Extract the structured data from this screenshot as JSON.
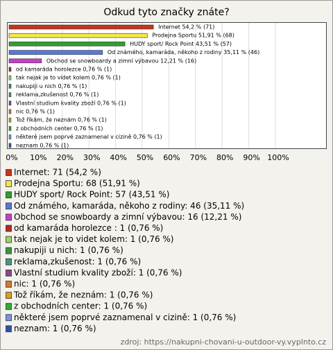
{
  "chart_data": {
    "type": "hbar",
    "title": "Odkud tyto značky znáte?",
    "categories": [
      "Internet",
      "Prodejna Sportu",
      "HUDY sport/ Rock Point",
      "Od známého, kamaráda, někoho z rodiny",
      "Obchod se snowboardy a zimní výbavou",
      "od kamaráda horolezce",
      "tak nejak je to videt kolem",
      "nakupiji u nich",
      "reklama,zkušenost",
      "Vlastní studium kvality zboží",
      "nic",
      "Tož říkám, že neznám",
      "z obchodních center",
      "některé jsem poprvé zaznamenal v cizině",
      "neznam"
    ],
    "values": [
      54.2,
      51.91,
      43.51,
      35.11,
      12.21,
      0.76,
      0.76,
      0.76,
      0.76,
      0.76,
      0.76,
      0.76,
      0.76,
      0.76,
      0.76
    ],
    "value_labels": [
      "Internet 54,2 % (71)",
      "Prodejna Sportu 51,91 % (68)",
      "HUDY sport/ Rock Point 43,51 % (57)",
      "Od známého, kamaráda, někoho z rodiny 35,11 % (46)",
      "Obchod se snowboardy a zimní výbavou 12,21 % (16)",
      "od kamaráda horolezce 0,76 % (1)",
      "tak nejak je to videt kolem 0,76 % (1)",
      "nakupiji u nich 0,76 % (1)",
      "reklama,zkušenost 0,76 % (1)",
      "Vlastní studium kvality zboží 0,76 % (1)",
      "nic 0,76 % (1)",
      "Tož říkám, že neznám 0,76 % (1)",
      "z obchodních center 0,76 % (1)",
      "některé jsem poprvé zaznamenal v cizině 0,76 % (1)",
      "neznam 0,76 % (1)"
    ],
    "legend_labels": [
      "Internet: 71 (54,2 %)",
      "Prodejna Sportu: 68 (51,91 %)",
      "HUDY sport/ Rock Point: 57 (43,51 %)",
      "Od známého, kamaráda, někoho z rodiny: 46 (35,11 %)",
      "Obchod se snowboardy a zimní výbavou: 16 (12,21 %)",
      "od kamaráda horolezce : 1 (0,76 %)",
      "tak nejak je to videt kolem: 1 (0,76 %)",
      "nakupiji u nich: 1 (0,76 %)",
      "reklama,zkušenost: 1 (0,76 %)",
      "Vlastní studium kvality zboží: 1 (0,76 %)",
      "nic: 1 (0,76 %)",
      "Tož říkám, že neznám: 1 (0,76 %)",
      "z obchodních center: 1 (0,76 %)",
      "některé jsem poprvé zaznamenal v cizině: 1 (0,76 %)",
      "neznam: 1 (0,76 %)"
    ],
    "colors": [
      "#c8321e",
      "#f2e64a",
      "#2e9e2e",
      "#5578dc",
      "#c83cc8",
      "#b42828",
      "#a0d264",
      "#3c963c",
      "#469682",
      "#8c468c",
      "#d27832",
      "#dca01e",
      "#32aa32",
      "#7896dc",
      "#3250aa"
    ],
    "xlim": [
      0,
      119
    ],
    "xticks": [
      {
        "value": 0,
        "label": "0%"
      },
      {
        "value": 10,
        "label": "10%"
      },
      {
        "value": 20,
        "label": "20%"
      },
      {
        "value": 30,
        "label": "30%"
      },
      {
        "value": 40,
        "label": "40%"
      },
      {
        "value": 50,
        "label": "50%"
      },
      {
        "value": 60,
        "label": "60%"
      },
      {
        "value": 70,
        "label": "70%"
      },
      {
        "value": 80,
        "label": "80%"
      },
      {
        "value": 90,
        "label": "90%"
      },
      {
        "value": 100,
        "label": "100%"
      }
    ],
    "grid": true,
    "source": "zdroj: https://nakupni-chovani-u-outdoor-vy.vyplnto.cz"
  }
}
